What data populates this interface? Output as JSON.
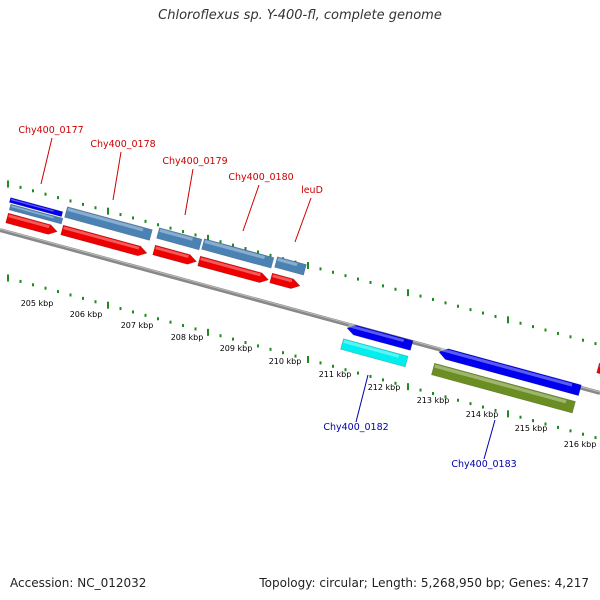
{
  "title": "Chloroflexus sp. Y-400-fl, complete genome",
  "footer": {
    "accession": "Accession: NC_012032",
    "summary": "Topology: circular; Length: 5,268,950 bp; Genes: 4,217"
  },
  "colors": {
    "backbone": "#8a8a8a",
    "tick": "#1f8a1f",
    "forward_label": "#cc0000",
    "reverse_label": "#0000aa",
    "cds_red": "#ee0000",
    "cds_blue": "#0000ee",
    "cds_steel": "#4a82b4",
    "cds_cyan": "#00eeee",
    "cds_olive": "#6b8e23"
  },
  "scale_labels": [
    "205 kbp",
    "206 kbp",
    "207 kbp",
    "208 kbp",
    "209 kbp",
    "210 kbp",
    "211 kbp",
    "212 kbp",
    "213 kbp",
    "214 kbp",
    "215 kbp",
    "216 kbp"
  ],
  "forward_genes": [
    "Chy400_0177",
    "Chy400_0178",
    "Chy400_0179",
    "Chy400_0180",
    "leuD"
  ],
  "reverse_genes": [
    "Chy400_0182",
    "Chy400_0183"
  ]
}
